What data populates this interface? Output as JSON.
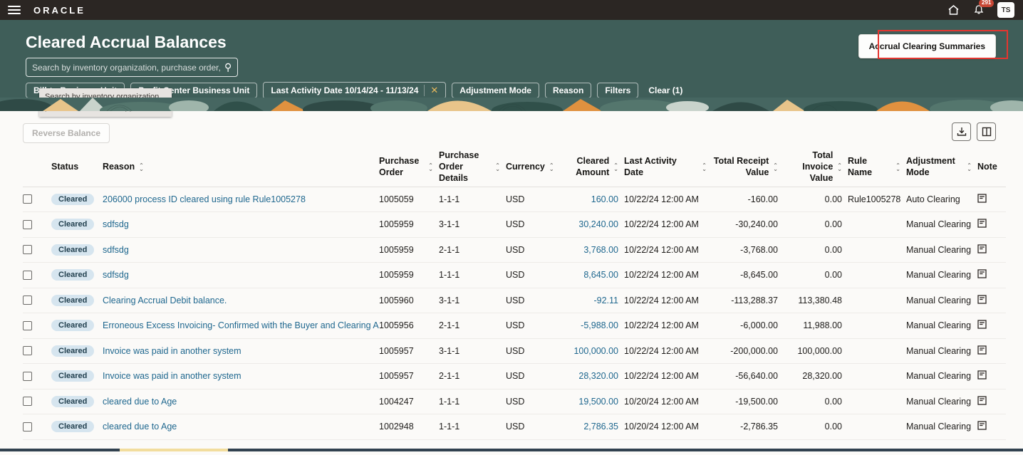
{
  "topbar": {
    "brand": "ORACLE",
    "notification_count": "291",
    "avatar_initials": "TS"
  },
  "header": {
    "title": "Cleared Accrual Balances",
    "search_placeholder": "Search by inventory organization, purchase order, ar",
    "tooltip": "Search by inventory organization, purchase order, and supplier.",
    "action_button": "Accrual Clearing Summaries",
    "chips": [
      {
        "label": "Bill-to Business Unit",
        "closable": false
      },
      {
        "label": "Profit Center Business Unit",
        "closable": false
      },
      {
        "label": "Last Activity Date 10/14/24 - 11/13/24",
        "closable": true
      },
      {
        "label": "Adjustment Mode",
        "closable": false
      },
      {
        "label": "Reason",
        "closable": false
      },
      {
        "label": "Filters",
        "closable": false
      }
    ],
    "clear_label": "Clear (1)"
  },
  "toolbar": {
    "reverse_balance_label": "Reverse Balance"
  },
  "table": {
    "headers": [
      {
        "label": "",
        "name": "select-all",
        "sortable": false,
        "align": "left"
      },
      {
        "label": "Status",
        "name": "status",
        "sortable": false,
        "align": "left"
      },
      {
        "label": "Reason",
        "name": "reason",
        "sortable": true,
        "align": "left"
      },
      {
        "label": "Purchase Order",
        "name": "purchase-order",
        "sortable": true,
        "align": "left"
      },
      {
        "label": "Purchase Order Details",
        "name": "purchase-order-details",
        "sortable": true,
        "align": "left"
      },
      {
        "label": "Currency",
        "name": "currency",
        "sortable": true,
        "align": "left"
      },
      {
        "label": "Cleared Amount",
        "name": "cleared-amount",
        "sortable": true,
        "align": "right"
      },
      {
        "label": "Last Activity Date",
        "name": "last-activity-date",
        "sortable": true,
        "align": "left"
      },
      {
        "label": "Total Receipt Value",
        "name": "total-receipt-value",
        "sortable": true,
        "align": "right"
      },
      {
        "label": "Total Invoice Value",
        "name": "total-invoice-value",
        "sortable": true,
        "align": "right"
      },
      {
        "label": "Rule Name",
        "name": "rule-name",
        "sortable": true,
        "align": "left"
      },
      {
        "label": "Adjustment Mode",
        "name": "adjustment-mode",
        "sortable": true,
        "align": "left"
      },
      {
        "label": "Note",
        "name": "note",
        "sortable": false,
        "align": "left"
      }
    ],
    "rows": [
      {
        "status": "Cleared",
        "reason": "206000 process ID cleared using rule Rule1005278",
        "purchase_order": "1005059",
        "po_details": "1-1-1",
        "currency": "USD",
        "cleared_amount": "160.00",
        "last_activity_date": "10/22/24 12:00 AM",
        "total_receipt_value": "-160.00",
        "total_invoice_value": "0.00",
        "rule_name": "Rule1005278",
        "adjustment_mode": "Auto Clearing",
        "has_note": true
      },
      {
        "status": "Cleared",
        "reason": "sdfsdg",
        "purchase_order": "1005959",
        "po_details": "3-1-1",
        "currency": "USD",
        "cleared_amount": "30,240.00",
        "last_activity_date": "10/22/24 12:00 AM",
        "total_receipt_value": "-30,240.00",
        "total_invoice_value": "0.00",
        "rule_name": "",
        "adjustment_mode": "Manual Clearing",
        "has_note": true
      },
      {
        "status": "Cleared",
        "reason": "sdfsdg",
        "purchase_order": "1005959",
        "po_details": "2-1-1",
        "currency": "USD",
        "cleared_amount": "3,768.00",
        "last_activity_date": "10/22/24 12:00 AM",
        "total_receipt_value": "-3,768.00",
        "total_invoice_value": "0.00",
        "rule_name": "",
        "adjustment_mode": "Manual Clearing",
        "has_note": true
      },
      {
        "status": "Cleared",
        "reason": "sdfsdg",
        "purchase_order": "1005959",
        "po_details": "1-1-1",
        "currency": "USD",
        "cleared_amount": "8,645.00",
        "last_activity_date": "10/22/24 12:00 AM",
        "total_receipt_value": "-8,645.00",
        "total_invoice_value": "0.00",
        "rule_name": "",
        "adjustment_mode": "Manual Clearing",
        "has_note": true
      },
      {
        "status": "Cleared",
        "reason": "Clearing Accrual Debit balance.",
        "purchase_order": "1005960",
        "po_details": "3-1-1",
        "currency": "USD",
        "cleared_amount": "-92.11",
        "last_activity_date": "10/22/24 12:00 AM",
        "total_receipt_value": "-113,288.37",
        "total_invoice_value": "113,380.48",
        "rule_name": "",
        "adjustment_mode": "Manual Clearing",
        "has_note": true
      },
      {
        "status": "Cleared",
        "reason": "Erroneous Excess Invoicing- Confirmed with the Buyer and Clearing Accrual",
        "purchase_order": "1005956",
        "po_details": "2-1-1",
        "currency": "USD",
        "cleared_amount": "-5,988.00",
        "last_activity_date": "10/22/24 12:00 AM",
        "total_receipt_value": "-6,000.00",
        "total_invoice_value": "11,988.00",
        "rule_name": "",
        "adjustment_mode": "Manual Clearing",
        "has_note": true
      },
      {
        "status": "Cleared",
        "reason": "Invoice was paid in another system",
        "purchase_order": "1005957",
        "po_details": "3-1-1",
        "currency": "USD",
        "cleared_amount": "100,000.00",
        "last_activity_date": "10/22/24 12:00 AM",
        "total_receipt_value": "-200,000.00",
        "total_invoice_value": "100,000.00",
        "rule_name": "",
        "adjustment_mode": "Manual Clearing",
        "has_note": true
      },
      {
        "status": "Cleared",
        "reason": "Invoice was paid in another system",
        "purchase_order": "1005957",
        "po_details": "2-1-1",
        "currency": "USD",
        "cleared_amount": "28,320.00",
        "last_activity_date": "10/22/24 12:00 AM",
        "total_receipt_value": "-56,640.00",
        "total_invoice_value": "28,320.00",
        "rule_name": "",
        "adjustment_mode": "Manual Clearing",
        "has_note": true
      },
      {
        "status": "Cleared",
        "reason": "cleared due to Age",
        "purchase_order": "1004247",
        "po_details": "1-1-1",
        "currency": "USD",
        "cleared_amount": "19,500.00",
        "last_activity_date": "10/20/24 12:00 AM",
        "total_receipt_value": "-19,500.00",
        "total_invoice_value": "0.00",
        "rule_name": "",
        "adjustment_mode": "Manual Clearing",
        "has_note": true
      },
      {
        "status": "Cleared",
        "reason": "cleared due to Age",
        "purchase_order": "1002948",
        "po_details": "1-1-1",
        "currency": "USD",
        "cleared_amount": "2,786.35",
        "last_activity_date": "10/20/24 12:00 AM",
        "total_receipt_value": "-2,786.35",
        "total_invoice_value": "0.00",
        "rule_name": "",
        "adjustment_mode": "Manual Clearing",
        "has_note": true
      }
    ]
  },
  "colors": {
    "accent_teal": "#3f5e59",
    "topbar": "#2b2623",
    "link": "#20688f",
    "annotation_red": "#e5352f",
    "badge_red": "#c74634",
    "pill_blue": "#d6e5ef",
    "scroll_thumb": "#f2dd9d"
  }
}
